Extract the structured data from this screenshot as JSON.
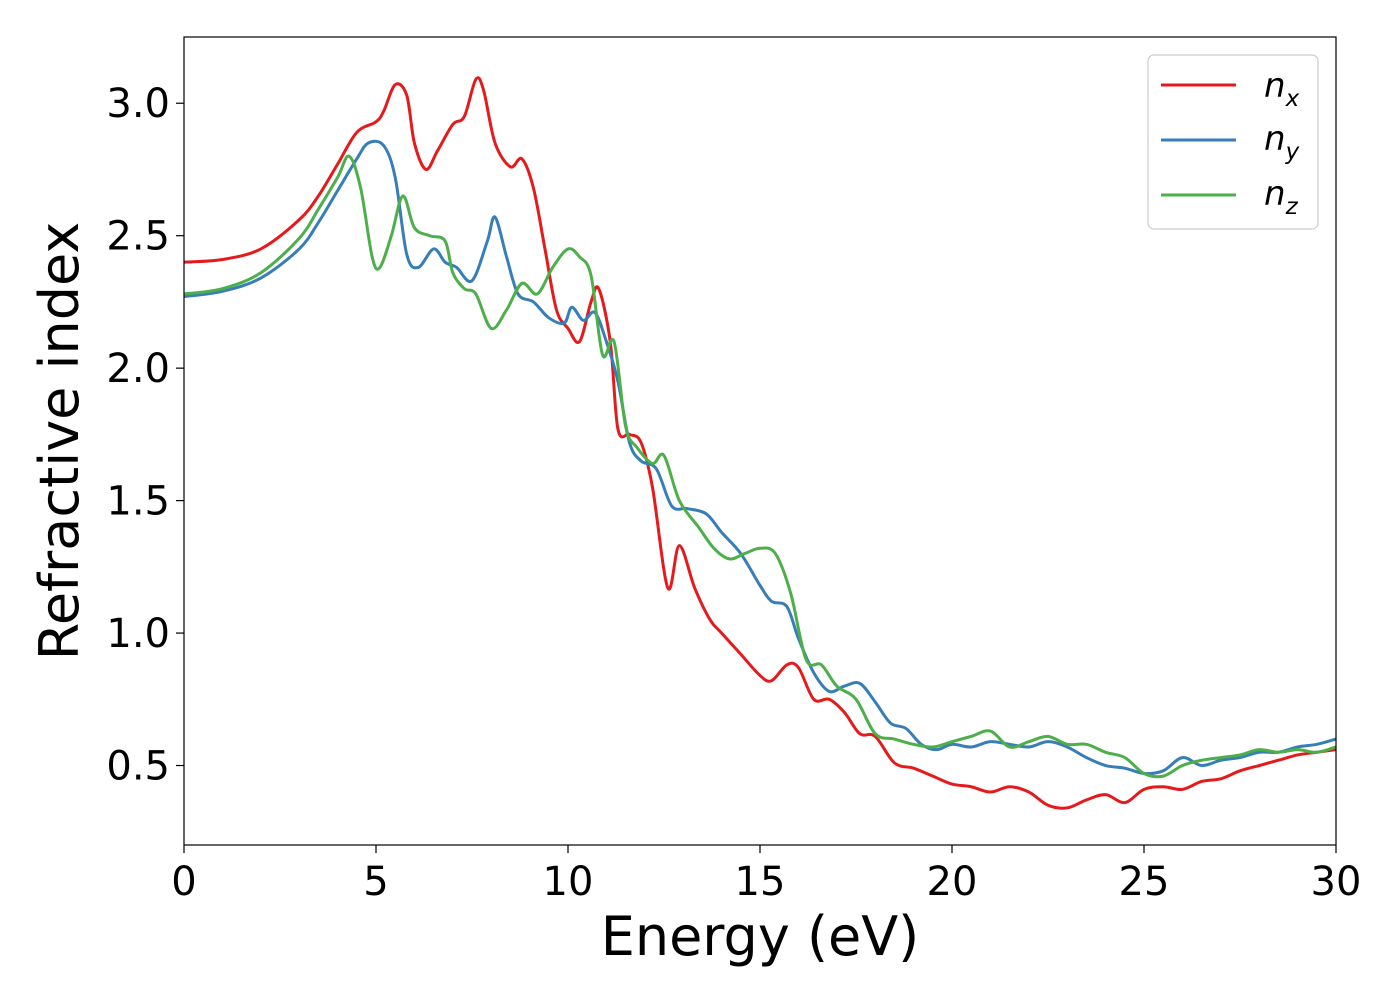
{
  "chart_data": {
    "type": "line",
    "title": "",
    "xlabel": "Energy (eV)",
    "ylabel": "Refractive index",
    "xlim": [
      0,
      30
    ],
    "ylim": [
      0.2,
      3.25
    ],
    "xticks": [
      0,
      5,
      10,
      15,
      20,
      25,
      30
    ],
    "xtick_labels": [
      "0",
      "5",
      "10",
      "15",
      "20",
      "25",
      "30"
    ],
    "yticks": [
      0.5,
      1.0,
      1.5,
      2.0,
      2.5,
      3.0
    ],
    "ytick_labels": [
      "0.5",
      "1.0",
      "1.5",
      "2.0",
      "2.5",
      "3.0"
    ],
    "grid": false,
    "legend_position": "top-right",
    "series": [
      {
        "name": "n",
        "subscript": "x",
        "color": "#e41a1c",
        "x": [
          0,
          1,
          2,
          3,
          3.5,
          4,
          4.5,
          5,
          5.2,
          5.5,
          5.8,
          6,
          6.3,
          6.6,
          7,
          7.3,
          7.6,
          7.8,
          8.1,
          8.5,
          8.8,
          9.1,
          9.4,
          9.7,
          10,
          10.3,
          10.6,
          10.8,
          11.1,
          11.3,
          11.6,
          11.9,
          12.2,
          12.6,
          12.9,
          13.3,
          13.7,
          14,
          14.5,
          15,
          15.3,
          15.7,
          16,
          16.4,
          16.8,
          17.2,
          17.6,
          18,
          18.5,
          19,
          19.5,
          20,
          20.5,
          21,
          21.5,
          22,
          22.5,
          23,
          23.5,
          24,
          24.5,
          25,
          25.5,
          26,
          26.5,
          27,
          27.5,
          28,
          28.5,
          29,
          29.5,
          30
        ],
        "y": [
          2.4,
          2.41,
          2.45,
          2.56,
          2.65,
          2.77,
          2.89,
          2.93,
          2.97,
          3.07,
          3.03,
          2.85,
          2.75,
          2.82,
          2.92,
          2.95,
          3.09,
          3.05,
          2.85,
          2.76,
          2.79,
          2.68,
          2.45,
          2.22,
          2.15,
          2.1,
          2.25,
          2.3,
          2.1,
          1.77,
          1.75,
          1.72,
          1.55,
          1.17,
          1.33,
          1.17,
          1.05,
          1.0,
          0.92,
          0.84,
          0.82,
          0.88,
          0.87,
          0.75,
          0.75,
          0.7,
          0.62,
          0.61,
          0.51,
          0.49,
          0.46,
          0.43,
          0.42,
          0.4,
          0.42,
          0.4,
          0.35,
          0.34,
          0.37,
          0.39,
          0.36,
          0.41,
          0.42,
          0.41,
          0.44,
          0.45,
          0.48,
          0.5,
          0.52,
          0.54,
          0.55,
          0.56
        ]
      },
      {
        "name": "n",
        "subscript": "y",
        "color": "#377eb8",
        "x": [
          0,
          1,
          2,
          3,
          3.5,
          4,
          4.5,
          4.8,
          5.2,
          5.5,
          5.8,
          6.1,
          6.5,
          6.8,
          7.1,
          7.5,
          7.9,
          8.1,
          8.4,
          8.7,
          9.1,
          9.5,
          9.9,
          10.1,
          10.4,
          10.7,
          11,
          11.3,
          11.6,
          11.9,
          12.3,
          12.7,
          13.1,
          13.6,
          14,
          14.5,
          15,
          15.3,
          15.7,
          16,
          16.4,
          16.8,
          17.2,
          17.6,
          18,
          18.4,
          18.8,
          19.2,
          19.6,
          20,
          20.5,
          21,
          21.5,
          22,
          22.5,
          23,
          23.5,
          24,
          24.5,
          25,
          25.5,
          26,
          26.5,
          27,
          27.5,
          28,
          28.5,
          29,
          29.5,
          30
        ],
        "y": [
          2.27,
          2.29,
          2.34,
          2.45,
          2.55,
          2.67,
          2.79,
          2.85,
          2.84,
          2.72,
          2.43,
          2.38,
          2.45,
          2.4,
          2.38,
          2.33,
          2.48,
          2.57,
          2.42,
          2.28,
          2.25,
          2.19,
          2.17,
          2.23,
          2.18,
          2.21,
          2.1,
          1.95,
          1.72,
          1.65,
          1.62,
          1.48,
          1.47,
          1.45,
          1.38,
          1.3,
          1.18,
          1.12,
          1.1,
          0.98,
          0.85,
          0.78,
          0.8,
          0.81,
          0.74,
          0.66,
          0.64,
          0.58,
          0.56,
          0.58,
          0.57,
          0.59,
          0.58,
          0.57,
          0.59,
          0.57,
          0.53,
          0.5,
          0.49,
          0.47,
          0.48,
          0.53,
          0.5,
          0.52,
          0.53,
          0.55,
          0.55,
          0.57,
          0.58,
          0.6
        ]
      },
      {
        "name": "n",
        "subscript": "z",
        "color": "#4daf4a",
        "x": [
          0,
          1,
          2,
          3,
          3.5,
          4,
          4.3,
          4.6,
          4.9,
          5.1,
          5.4,
          5.7,
          6.0,
          6.4,
          6.8,
          7.0,
          7.3,
          7.6,
          8.0,
          8.4,
          8.8,
          9.2,
          9.6,
          10.0,
          10.3,
          10.6,
          10.9,
          11.2,
          11.5,
          11.8,
          12.2,
          12.5,
          12.9,
          13.4,
          13.8,
          14.2,
          14.6,
          15,
          15.4,
          15.8,
          16.2,
          16.6,
          17,
          17.5,
          18,
          18.5,
          19,
          19.5,
          20,
          20.5,
          21,
          21.5,
          22,
          22.5,
          23,
          23.5,
          24,
          24.5,
          25,
          25.5,
          26,
          26.5,
          27,
          27.5,
          28,
          28.5,
          29,
          29.5,
          30
        ],
        "y": [
          2.28,
          2.3,
          2.36,
          2.49,
          2.6,
          2.72,
          2.8,
          2.68,
          2.42,
          2.38,
          2.5,
          2.65,
          2.53,
          2.5,
          2.48,
          2.36,
          2.3,
          2.28,
          2.15,
          2.22,
          2.32,
          2.28,
          2.38,
          2.45,
          2.42,
          2.35,
          2.05,
          2.1,
          1.78,
          1.7,
          1.64,
          1.67,
          1.5,
          1.4,
          1.32,
          1.28,
          1.3,
          1.32,
          1.3,
          1.15,
          0.9,
          0.88,
          0.8,
          0.75,
          0.62,
          0.6,
          0.58,
          0.57,
          0.59,
          0.61,
          0.63,
          0.57,
          0.59,
          0.61,
          0.58,
          0.58,
          0.55,
          0.53,
          0.47,
          0.46,
          0.5,
          0.52,
          0.53,
          0.54,
          0.56,
          0.55,
          0.56,
          0.55,
          0.57
        ]
      }
    ]
  }
}
